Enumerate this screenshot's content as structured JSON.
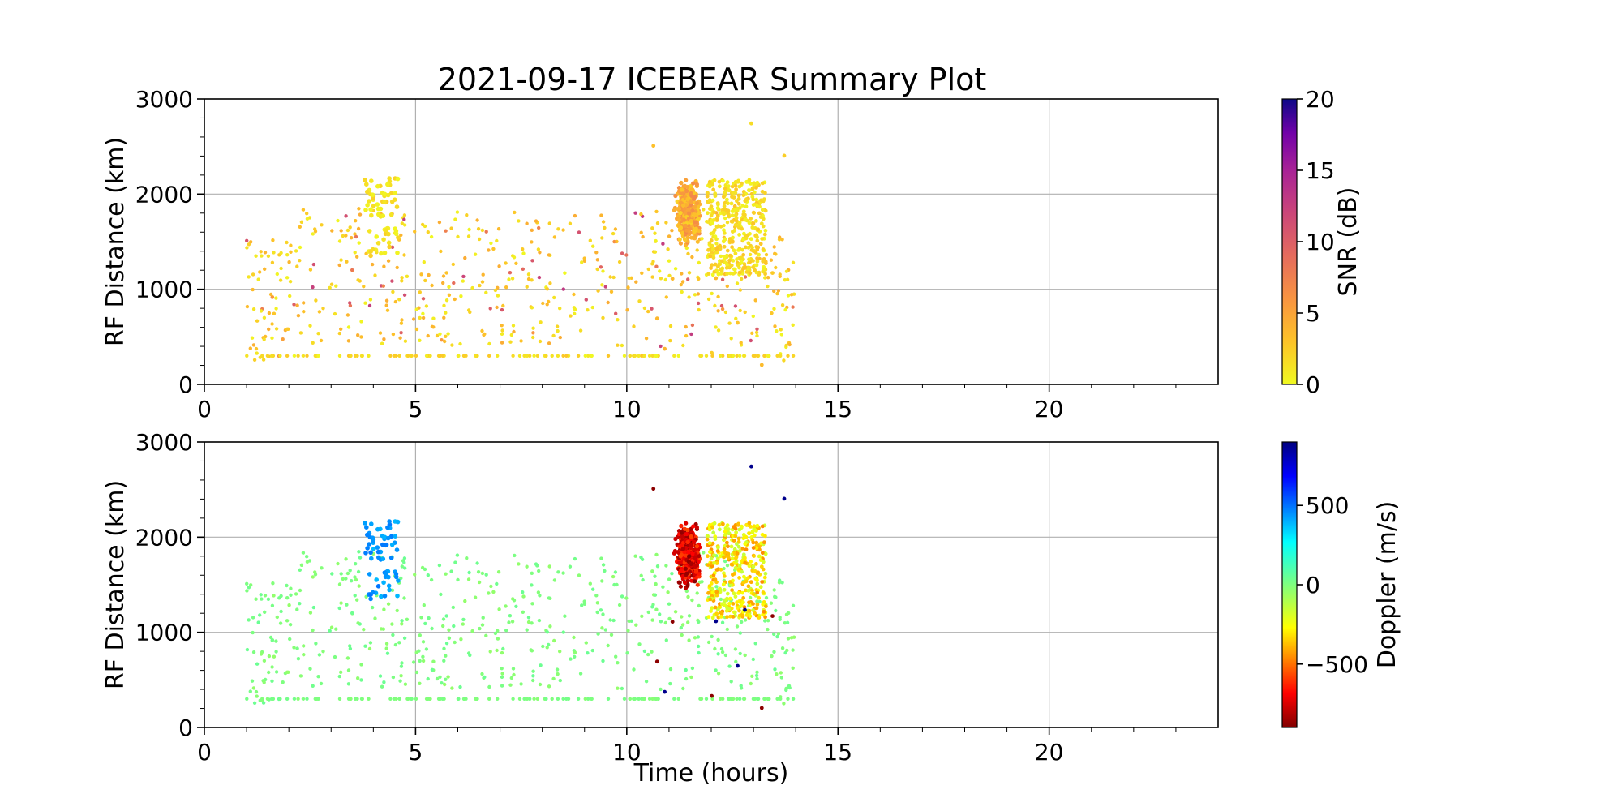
{
  "chart_data": [
    {
      "type": "scatter",
      "title": "2021-09-17 ICEBEAR Summary Plot",
      "xlabel": "",
      "ylabel": "RF Distance (km)",
      "xlim": [
        0,
        24
      ],
      "ylim": [
        0,
        3000
      ],
      "xticks": [
        0,
        5,
        10,
        15,
        20
      ],
      "yticks": [
        0,
        1000,
        2000,
        3000
      ],
      "grid": true,
      "colorbar": {
        "label": "SNR (dB)",
        "range": [
          0,
          20
        ],
        "ticks": [
          0,
          5,
          10,
          15,
          20
        ],
        "colormap": "plasma_r"
      },
      "series": [
        {
          "values": "scattered echoes between ~1 and ~14 hours; streak at 300 km; dense clusters near 4 h (1300-2200 km) and 11-13 h (1200-2200 km)",
          "x_range_hours": [
            1,
            14
          ],
          "y_range_km": [
            0,
            2850
          ]
        }
      ]
    },
    {
      "type": "scatter",
      "title": "",
      "xlabel": "Time (hours)",
      "ylabel": "RF Distance (km)",
      "xlim": [
        0,
        24
      ],
      "ylim": [
        0,
        3000
      ],
      "xticks": [
        0,
        5,
        10,
        15,
        20
      ],
      "yticks": [
        0,
        1000,
        2000,
        3000
      ],
      "grid": true,
      "colorbar": {
        "label": "Doppler (m/s)",
        "range": [
          -900,
          900
        ],
        "ticks": [
          -500,
          0,
          500
        ],
        "tick_labels": [
          "−500",
          "0",
          "500"
        ],
        "colormap": "jet_r"
      },
      "series": [
        {
          "values": "same echoes colored by Doppler: mostly near 0 m/s; ~+500 m/s cluster near 4 h; -500 to -900 m/s cluster near 11-12 h",
          "x_range_hours": [
            1,
            14
          ],
          "y_range_km": [
            0,
            2850
          ]
        }
      ]
    }
  ]
}
